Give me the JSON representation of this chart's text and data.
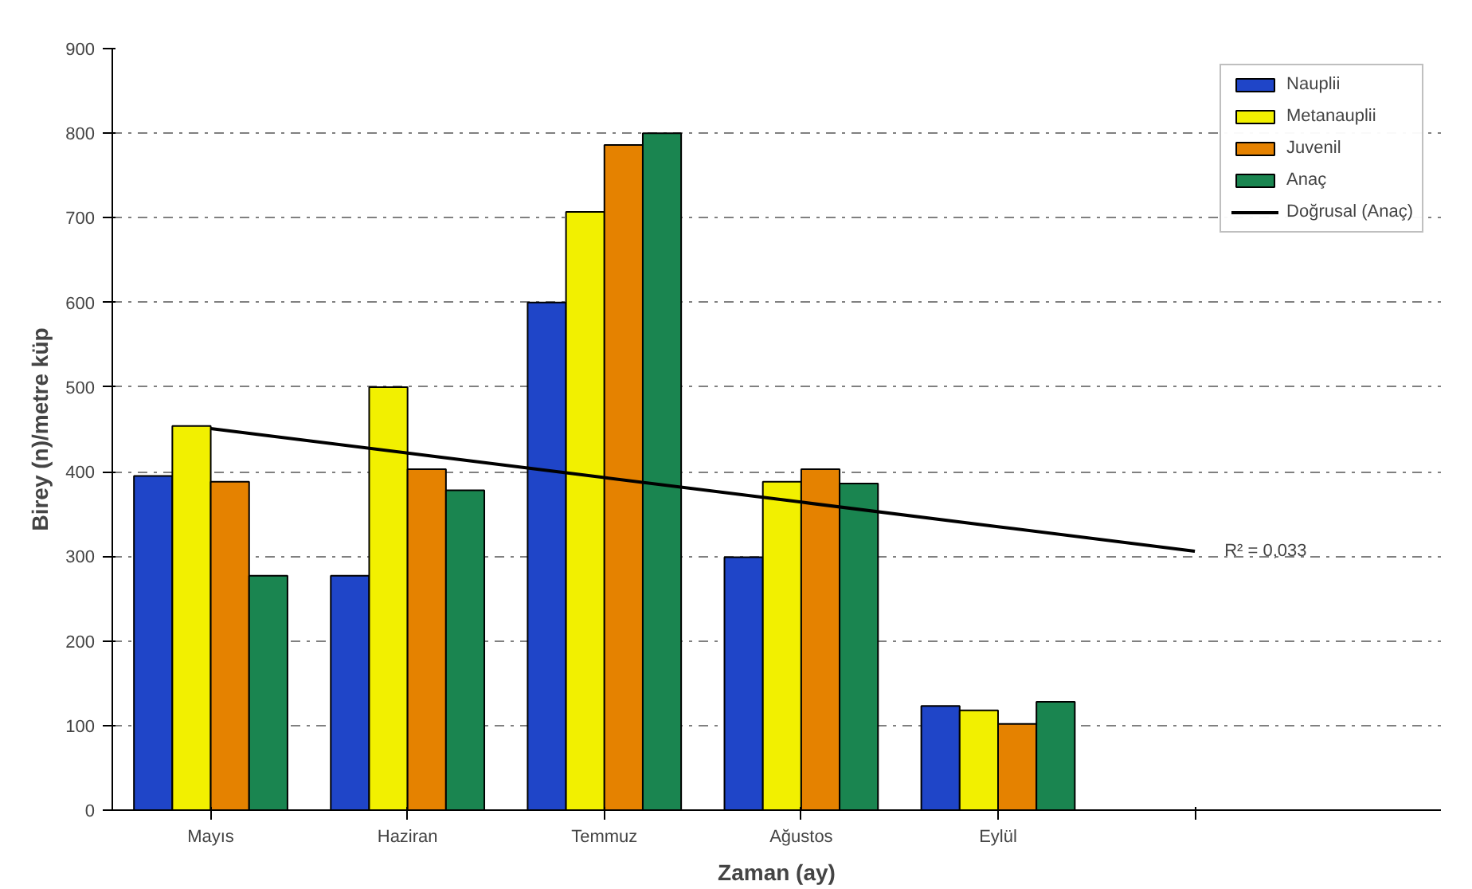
{
  "chart_data": {
    "type": "bar",
    "xlabel": "Zaman (ay)",
    "ylabel": "Birey (n)/metre küp",
    "categories": [
      "Mayıs",
      "Haziran",
      "Temmuz",
      "Ağustos",
      "Eylül",
      null
    ],
    "series": [
      {
        "name": "Nauplii",
        "color": "#1f45c8",
        "values": [
          395,
          277,
          600,
          299,
          123,
          null
        ]
      },
      {
        "name": "Metanauplii",
        "color": "#f2f000",
        "values": [
          454,
          500,
          707,
          388,
          118,
          null
        ]
      },
      {
        "name": "Juvenil",
        "color": "#e58200",
        "values": [
          388,
          403,
          786,
          403,
          102,
          null
        ]
      },
      {
        "name": "Anaç",
        "color": "#1a8550",
        "values": [
          277,
          378,
          800,
          386,
          128,
          null
        ]
      },
      {
        "name": "Doğrusal (Anaç)",
        "type": "line",
        "color": "#000000",
        "values": [
          451,
          422,
          393,
          364,
          335,
          306
        ]
      }
    ],
    "ylim": [
      0,
      900
    ],
    "yticks": [
      0,
      100,
      200,
      300,
      400,
      500,
      600,
      700,
      800,
      900
    ],
    "grid": "y",
    "legend": "top right",
    "annotations": [
      "R² = 0,033"
    ]
  }
}
